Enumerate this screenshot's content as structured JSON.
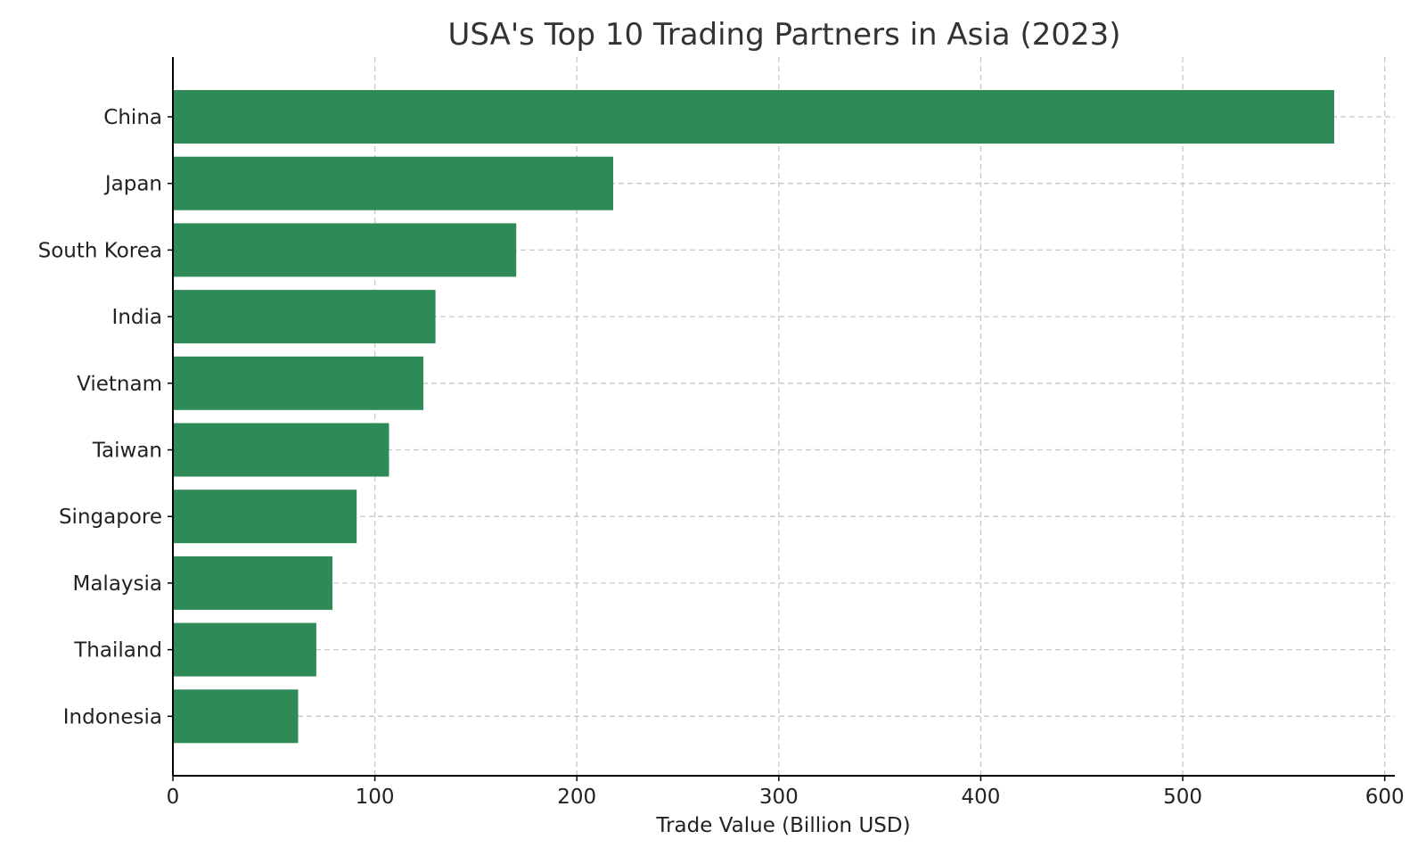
{
  "chart_data": {
    "type": "bar",
    "orientation": "horizontal",
    "title": "USA's Top 10 Trading Partners in Asia (2023)",
    "xlabel": "Trade Value (Billion USD)",
    "ylabel": "",
    "categories": [
      "China",
      "Japan",
      "South Korea",
      "India",
      "Vietnam",
      "Taiwan",
      "Singapore",
      "Malaysia",
      "Thailand",
      "Indonesia"
    ],
    "values": [
      575,
      218,
      170,
      130,
      124,
      107,
      91,
      79,
      71,
      62
    ],
    "xlim": [
      0,
      605
    ],
    "xticks": [
      0,
      100,
      200,
      300,
      400,
      500,
      600
    ],
    "grid": true,
    "bar_color": "#2e8b57"
  }
}
